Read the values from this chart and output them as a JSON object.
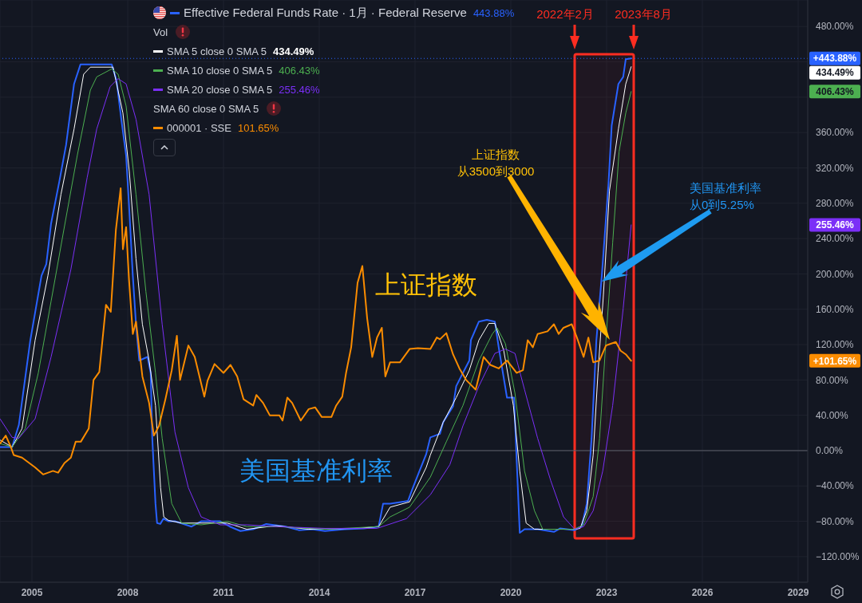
{
  "chart_data": {
    "type": "line",
    "legend": "top left",
    "grid": true,
    "xlim": [
      2004,
      2029.3
    ],
    "xticks": [
      2005,
      2008,
      2011,
      2014,
      2017,
      2020,
      2023,
      2026,
      2029
    ],
    "ylim": [
      -149,
      510
    ],
    "yticks": [
      {
        "value": -120,
        "label": "−120.00%"
      },
      {
        "value": -80,
        "label": "−80.00%"
      },
      {
        "value": -40,
        "label": "−40.00%"
      },
      {
        "value": 0,
        "label": "0.00%"
      },
      {
        "value": 40,
        "label": "40.00%"
      },
      {
        "value": 80,
        "label": "80.00%"
      },
      {
        "value": 120,
        "label": "120.00%"
      },
      {
        "value": 160,
        "label": "160.00%"
      },
      {
        "value": 200,
        "label": "200.00%"
      },
      {
        "value": 240,
        "label": "240.00%"
      },
      {
        "value": 280,
        "label": "280.00%"
      },
      {
        "value": 320,
        "label": "320.00%"
      },
      {
        "value": 360,
        "label": "360.00%"
      },
      {
        "value": 400,
        "label": null
      },
      {
        "value": 440,
        "label": null
      },
      {
        "value": 480,
        "label": "480.00%"
      }
    ],
    "series": [
      {
        "name": "Effective Federal Funds Rate · 1月 · Federal Reserve",
        "color": "#2962ff",
        "x": [
          2004.0,
          2004.38,
          2004.59,
          2004.95,
          2005.3,
          2005.45,
          2005.6,
          2005.86,
          2006.07,
          2006.32,
          2006.52,
          2007.03,
          2007.5,
          2007.65,
          2007.8,
          2007.95,
          2008.05,
          2008.16,
          2008.26,
          2008.36,
          2008.62,
          2008.72,
          2008.77,
          2008.87,
          2008.92,
          2009.02,
          2009.12,
          2009.28,
          2009.48,
          2010.0,
          2010.3,
          2010.9,
          2011.2,
          2011.53,
          2011.93,
          2012.34,
          2012.95,
          2013.36,
          2013.77,
          2014.18,
          2014.79,
          2015.4,
          2015.86,
          2016.0,
          2016.22,
          2016.78,
          2016.9,
          2017.14,
          2017.35,
          2017.48,
          2017.78,
          2017.88,
          2018.19,
          2018.29,
          2018.5,
          2018.7,
          2018.75,
          2019.0,
          2019.25,
          2019.5,
          2019.62,
          2019.88,
          2020.1,
          2020.28,
          2020.43,
          2020.84,
          2021.35,
          2021.55,
          2022.0,
          2022.22,
          2022.38,
          2022.53,
          2022.68,
          2022.85,
          2023.06,
          2023.16,
          2023.37,
          2023.52,
          2023.6,
          2023.77
        ],
        "values": [
          4,
          4,
          29,
          125,
          198,
          211,
          257,
          305,
          346,
          415,
          437,
          437,
          437,
          419,
          375,
          334,
          272,
          198,
          143,
          102,
          106,
          88,
          14,
          -60,
          -82,
          -83,
          -77,
          -80,
          -80,
          -86,
          -80,
          -80,
          -86,
          -91,
          -89,
          -83,
          -86,
          -90,
          -89,
          -91,
          -89,
          -88,
          -86,
          -60,
          -60,
          -57,
          -45,
          -23,
          -4,
          15,
          19,
          32,
          50,
          73,
          88,
          102,
          125,
          146,
          148,
          146,
          117,
          60,
          60,
          -93,
          -89,
          -89,
          -92,
          -88,
          -90,
          -86,
          -60,
          14,
          125,
          198,
          302,
          368,
          415,
          423,
          443,
          443.88
        ]
      },
      {
        "name": "SMA 5 close 0 SMA 5",
        "color": "#ffffff",
        "x": [
          2004.0,
          2004.38,
          2004.69,
          2005.1,
          2005.5,
          2005.91,
          2006.32,
          2006.62,
          2006.83,
          2007.54,
          2007.85,
          2008.05,
          2008.26,
          2008.46,
          2008.67,
          2008.87,
          2009.03,
          2009.13,
          2009.28,
          2009.69,
          2011.12,
          2011.73,
          2012.65,
          2013.67,
          2015.2,
          2015.86,
          2016.22,
          2016.83,
          2017.35,
          2017.48,
          2017.88,
          2018.29,
          2018.7,
          2019.0,
          2019.31,
          2019.5,
          2019.78,
          2020.08,
          2020.28,
          2020.48,
          2020.74,
          2021.97,
          2022.17,
          2022.38,
          2022.58,
          2022.73,
          2022.9,
          2023.09,
          2023.37,
          2023.6,
          2023.77
        ],
        "values": [
          12,
          4,
          25,
          125,
          198,
          290,
          364,
          426,
          434,
          434,
          382,
          316,
          217,
          143,
          102,
          51,
          -42,
          -75,
          -79,
          -82,
          -82,
          -89,
          -85,
          -89,
          -88,
          -86,
          -64,
          -58,
          -19,
          -5,
          32,
          60,
          91,
          125,
          144,
          144,
          113,
          51,
          -23,
          -82,
          -89,
          -89,
          -88,
          -68,
          -5,
          88,
          176,
          294,
          364,
          415,
          434.49
        ]
      },
      {
        "name": "SMA 10 close 0 SMA 5",
        "color": "#4caf50",
        "x": [
          2004.0,
          2004.38,
          2004.79,
          2005.2,
          2005.6,
          2006.0,
          2006.42,
          2006.83,
          2007.03,
          2007.5,
          2007.7,
          2007.95,
          2008.26,
          2008.57,
          2008.87,
          2009.08,
          2009.38,
          2009.69,
          2010.3,
          2011.12,
          2011.73,
          2012.65,
          2014.18,
          2015.86,
          2016.22,
          2016.83,
          2017.48,
          2017.98,
          2018.5,
          2019.0,
          2019.42,
          2019.57,
          2019.83,
          2020.13,
          2020.43,
          2020.74,
          2021.0,
          2021.97,
          2022.28,
          2022.58,
          2022.78,
          2022.98,
          2023.19,
          2023.39,
          2023.6,
          2023.77
        ],
        "values": [
          8,
          4,
          25,
          88,
          169,
          250,
          334,
          408,
          423,
          432,
          426,
          390,
          290,
          180,
          88,
          14,
          -60,
          -82,
          -84,
          -80,
          -86,
          -86,
          -89,
          -86,
          -75,
          -64,
          -30,
          10,
          51,
          102,
          132,
          139,
          121,
          65,
          -23,
          -68,
          -89,
          -89,
          -84,
          -52,
          14,
          125,
          235,
          338,
          382,
          406.43
        ]
      },
      {
        "name": "SMA 20 close 0 SMA 5",
        "color": "#7b2ff7",
        "x": [
          2004.0,
          2004.38,
          2004.59,
          2005.1,
          2005.6,
          2006.22,
          2006.73,
          2007.03,
          2007.45,
          2007.7,
          2007.95,
          2008.26,
          2008.67,
          2009.08,
          2009.48,
          2009.9,
          2010.3,
          2010.9,
          2011.73,
          2012.65,
          2014.18,
          2015.81,
          2016.73,
          2017.48,
          2018.09,
          2018.5,
          2019.0,
          2019.5,
          2019.83,
          2020.13,
          2020.43,
          2020.84,
          2021.25,
          2021.65,
          2022.0,
          2022.28,
          2022.58,
          2022.88,
          2023.19,
          2023.52,
          2023.77
        ],
        "values": [
          36,
          15,
          14,
          36,
          106,
          205,
          309,
          364,
          412,
          421,
          415,
          375,
          290,
          143,
          21,
          -42,
          -75,
          -84,
          -84,
          -86,
          -88,
          -88,
          -77,
          -50,
          -16,
          28,
          73,
          110,
          115,
          110,
          69,
          14,
          -34,
          -75,
          -89,
          -86,
          -68,
          -23,
          51,
          161,
          255.46
        ]
      },
      {
        "name": "000001 · SSE",
        "color": "#fb8c00",
        "x": [
          2004.0,
          2004.18,
          2004.33,
          2004.43,
          2004.69,
          2004.84,
          2005.1,
          2005.35,
          2005.66,
          2005.82,
          2006.02,
          2006.22,
          2006.37,
          2006.53,
          2006.78,
          2006.93,
          2007.11,
          2007.32,
          2007.47,
          2007.63,
          2007.78,
          2007.85,
          2007.95,
          2008.04,
          2008.16,
          2008.26,
          2008.46,
          2008.67,
          2008.82,
          2008.98,
          2009.18,
          2009.38,
          2009.54,
          2009.64,
          2009.9,
          2010.1,
          2010.4,
          2010.5,
          2010.72,
          2011.0,
          2011.22,
          2011.43,
          2011.63,
          2011.93,
          2012.03,
          2012.24,
          2012.45,
          2012.75,
          2012.85,
          2013.0,
          2013.15,
          2013.42,
          2013.67,
          2013.87,
          2014.08,
          2014.38,
          2014.53,
          2014.72,
          2014.84,
          2015.0,
          2015.2,
          2015.35,
          2015.5,
          2015.66,
          2015.81,
          2015.96,
          2016.07,
          2016.22,
          2016.53,
          2016.83,
          2017.09,
          2017.48,
          2017.68,
          2017.78,
          2017.98,
          2018.19,
          2018.39,
          2018.6,
          2018.9,
          2019.15,
          2019.36,
          2019.62,
          2019.88,
          2020.18,
          2020.38,
          2020.53,
          2020.69,
          2020.84,
          2021.15,
          2021.35,
          2021.5,
          2021.65,
          2021.91,
          2022.07,
          2022.28,
          2022.43,
          2022.58,
          2022.78,
          2022.98,
          2023.29,
          2023.44,
          2023.6,
          2023.77
        ],
        "values": [
          8,
          17,
          5,
          -5,
          -8,
          -12,
          -19,
          -27,
          -23,
          -25,
          -14,
          -8,
          10,
          10,
          25,
          80,
          89,
          165,
          157,
          250,
          297,
          228,
          253,
          194,
          132,
          146,
          84,
          54,
          17,
          28,
          58,
          91,
          130,
          80,
          119,
          106,
          61,
          79,
          98,
          88,
          97,
          84,
          58,
          51,
          63,
          54,
          40,
          40,
          34,
          60,
          54,
          34,
          47,
          49,
          38,
          38,
          51,
          61,
          88,
          117,
          190,
          209,
          150,
          106,
          128,
          139,
          84,
          100,
          100,
          115,
          116,
          115,
          128,
          126,
          133,
          109,
          93,
          80,
          69,
          106,
          97,
          93,
          102,
          88,
          91,
          125,
          117,
          132,
          135,
          143,
          132,
          139,
          143,
          128,
          106,
          128,
          100,
          102,
          119,
          123,
          113,
          109,
          101.65
        ]
      }
    ],
    "ref_lines": [
      {
        "axis": "y",
        "value": 0,
        "color": "#5d606b"
      },
      {
        "axis": "y",
        "value": 443.88,
        "color": "#2962ff",
        "line_style": "dotted"
      }
    ],
    "bands": [
      {
        "axis": "x",
        "from": 2022.0,
        "to": 2023.85,
        "color": "#ff2d21"
      }
    ],
    "annotations": [
      "443.88%",
      "Vol",
      "434.49%",
      "406.43%",
      "255.46%",
      "SMA 60 close 0 SMA 5",
      "101.65%",
      "2022年2月",
      "2023年8月",
      "上证指数",
      "美国基准利率",
      "上证指数从3500到3000",
      "美国基准利率从0到5.25%",
      "+443.88%",
      "434.49%",
      "406.43%",
      "255.46%",
      "+101.65%"
    ]
  }
}
